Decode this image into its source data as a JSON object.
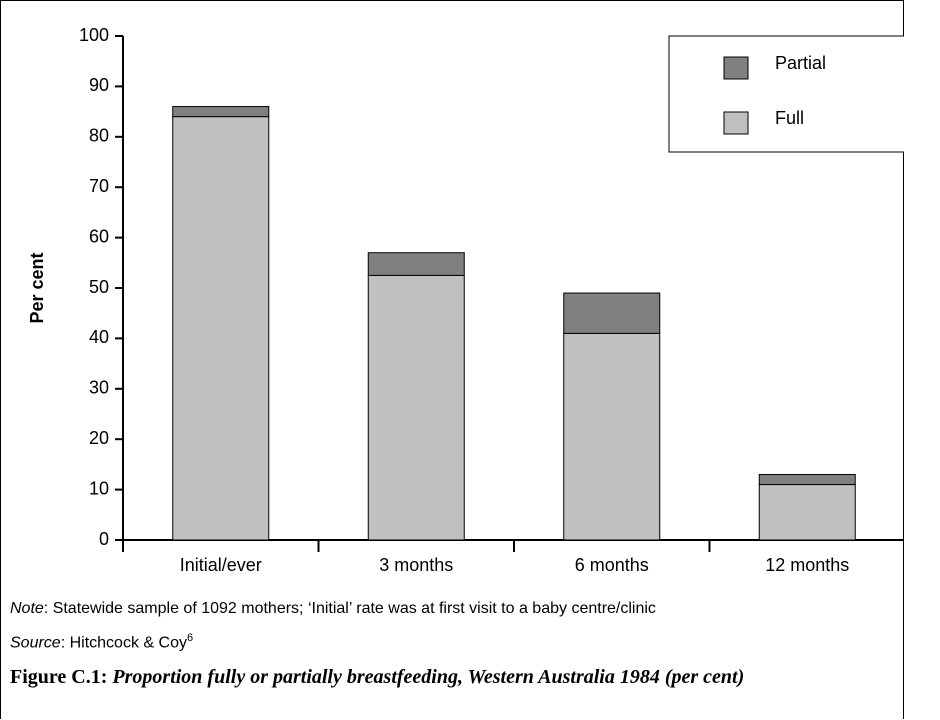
{
  "chart_data": {
    "type": "stacked_bar",
    "y_label": "Per cent",
    "categories": [
      "Initial/ever",
      "3 months",
      "6 months",
      "12 months"
    ],
    "series": [
      {
        "name": "Full",
        "color": "#c0c0c0",
        "values": [
          84,
          52.5,
          41,
          11
        ]
      },
      {
        "name": "Partial",
        "color": "#808080",
        "values": [
          2,
          4.5,
          8,
          2
        ]
      }
    ],
    "ylim": [
      0,
      100
    ],
    "yticks": [
      0,
      10,
      20,
      30,
      40,
      50,
      60,
      70,
      80,
      90,
      100
    ],
    "legend": "top-right"
  },
  "note": {
    "label": "Note",
    "text": ": Statewide sample of 1092 mothers; ‘Initial’ rate was at first visit to a baby centre/clinic"
  },
  "source": {
    "label": "Source",
    "text": ": Hitchcock & Coy",
    "ref": "6"
  },
  "figure": {
    "number": "Figure C.1:",
    "title": "Proportion fully or partially breastfeeding, Western Australia 1984 (per cent)"
  }
}
